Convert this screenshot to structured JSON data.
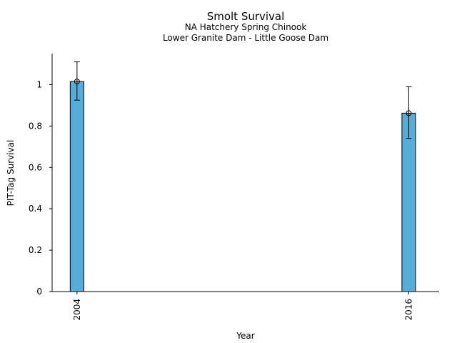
{
  "chart_data": {
    "type": "bar",
    "title": "Smolt Survival",
    "subtitle_1": "NA Hatchery Spring Chinook",
    "subtitle_2": "Lower Granite Dam - Little Goose Dam",
    "xlabel": "Year",
    "ylabel": "PIT-Tag Survival",
    "categories": [
      "2004",
      "2016"
    ],
    "x": [
      2004,
      2016
    ],
    "values": [
      1.015,
      0.862
    ],
    "error_lower": [
      0.925,
      0.74
    ],
    "error_upper": [
      1.11,
      0.99
    ],
    "ylim": [
      0,
      1.15
    ],
    "yticks": [
      0,
      0.2,
      0.4,
      0.6,
      0.8,
      1
    ],
    "ytick_labels": [
      "0",
      "0.2",
      "0.4",
      "0.6",
      "0.8",
      "1"
    ],
    "xlim": [
      2003.1,
      2017.1
    ],
    "bar_color": "#56add8",
    "edge_color": "#000000",
    "grid": false,
    "legend": "none"
  }
}
